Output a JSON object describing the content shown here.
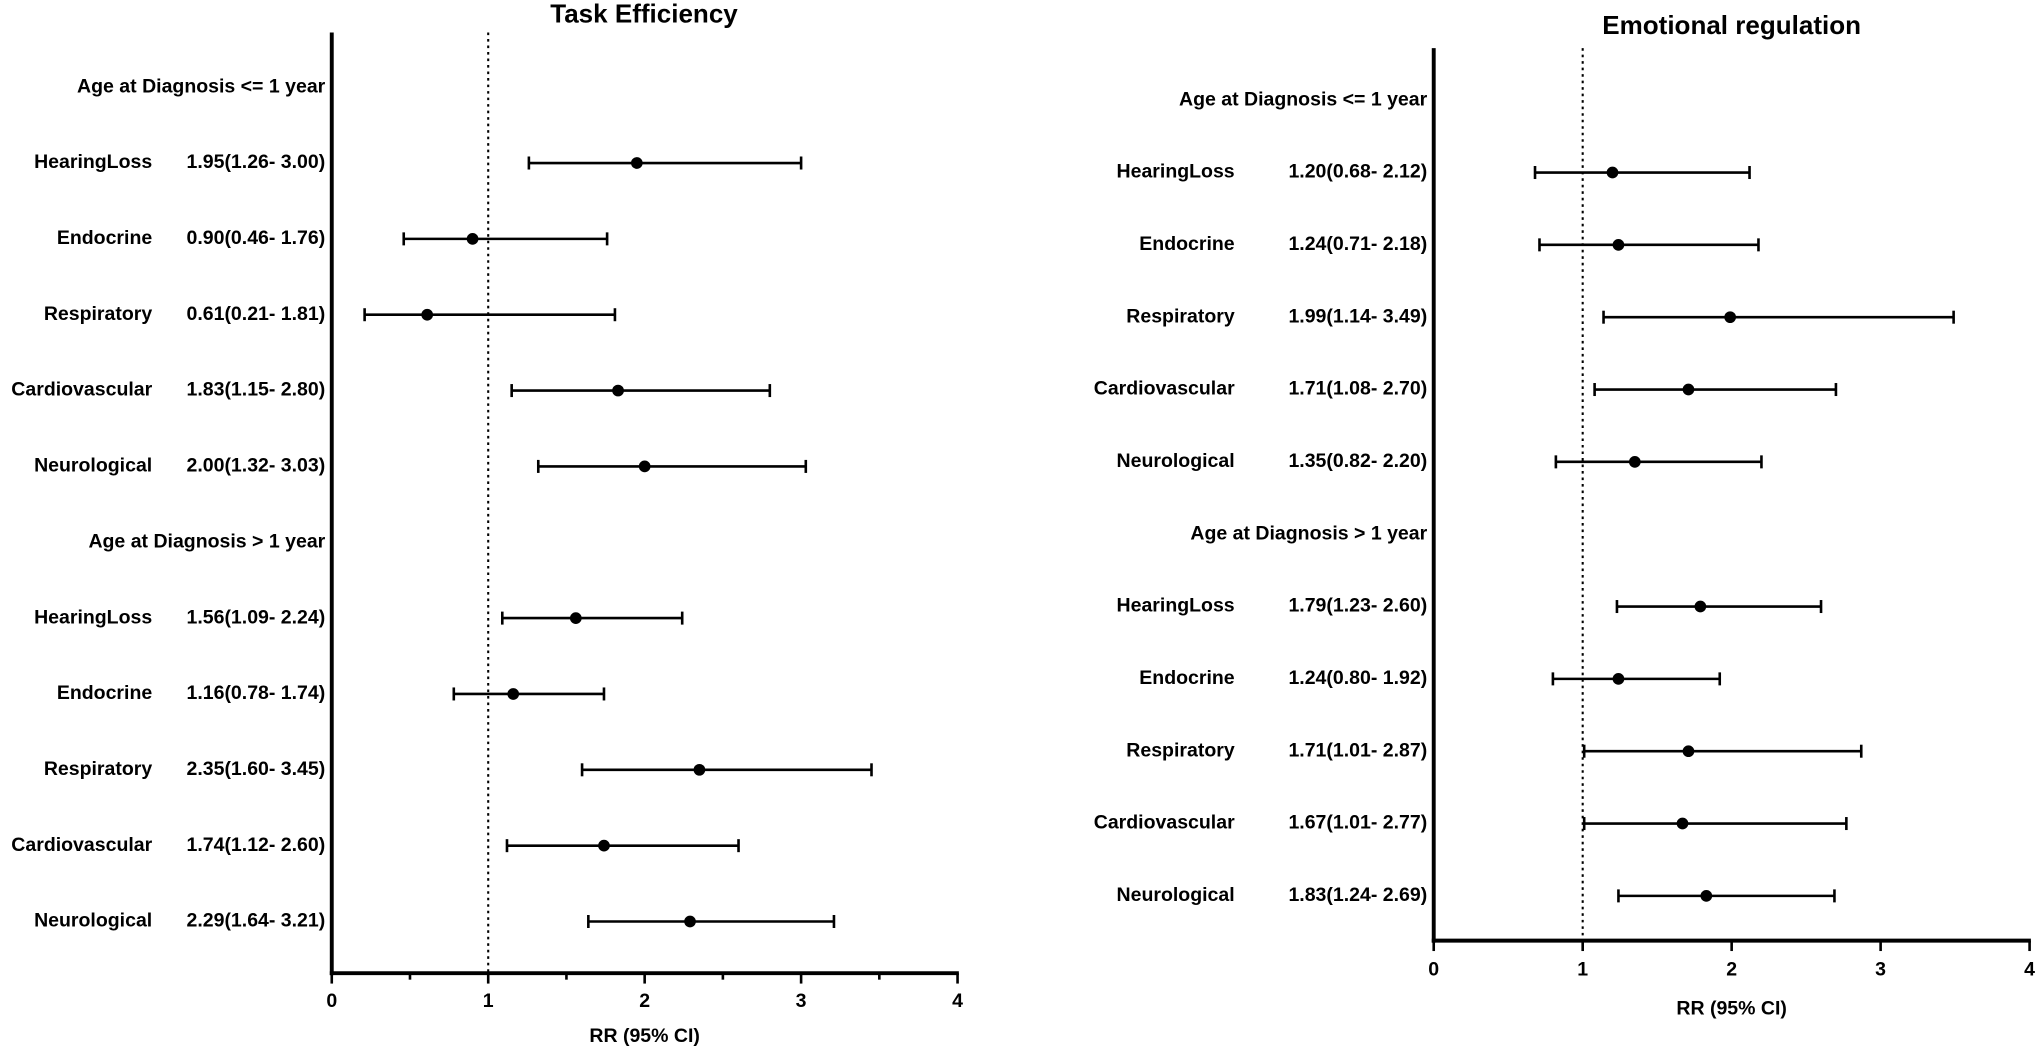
{
  "chart_data": [
    {
      "type": "forest",
      "title": "Task Efficiency",
      "xlabel": "RR (95% CI)",
      "xlim": [
        0,
        4
      ],
      "xticks": [
        0,
        1,
        2,
        3,
        4
      ],
      "minor_xticks": [
        0.5,
        1.5,
        2.5,
        3.5
      ],
      "reference": 1,
      "groups": [
        {
          "name": "Age at Diagnosis <= 1 year",
          "categories": [
            "HearingLoss",
            "Endocrine",
            "Respiratory",
            "Cardiovascular",
            "Neurological"
          ],
          "values": [
            1.95,
            0.9,
            0.61,
            1.83,
            2.0
          ],
          "lower": [
            1.26,
            0.46,
            0.21,
            1.15,
            1.32
          ],
          "upper": [
            3.0,
            1.76,
            1.81,
            2.8,
            3.03
          ],
          "value_labels": [
            "1.95(1.26- 3.00)",
            "0.90(0.46- 1.76)",
            "0.61(0.21- 1.81)",
            "1.83(1.15- 2.80)",
            "2.00(1.32- 3.03)"
          ]
        },
        {
          "name": "Age at Diagnosis > 1 year",
          "categories": [
            "HearingLoss",
            "Endocrine",
            "Respiratory",
            "Cardiovascular",
            "Neurological"
          ],
          "values": [
            1.56,
            1.16,
            2.35,
            1.74,
            2.29
          ],
          "lower": [
            1.09,
            0.78,
            1.6,
            1.12,
            1.64
          ],
          "upper": [
            2.24,
            1.74,
            3.45,
            2.6,
            3.21
          ],
          "value_labels": [
            "1.56(1.09- 2.24)",
            "1.16(0.78- 1.74)",
            "2.35(1.60- 3.45)",
            "1.74(1.12- 2.60)",
            "2.29(1.64- 3.21)"
          ]
        }
      ]
    },
    {
      "type": "forest",
      "title": "Emotional regulation",
      "xlabel": "RR (95% CI)",
      "xlim": [
        0,
        4
      ],
      "xticks": [
        0,
        1,
        2,
        3,
        4
      ],
      "reference": 1,
      "groups": [
        {
          "name": "Age at Diagnosis <= 1 year",
          "categories": [
            "HearingLoss",
            "Endocrine",
            "Respiratory",
            "Cardiovascular",
            "Neurological"
          ],
          "values": [
            1.2,
            1.24,
            1.99,
            1.71,
            1.35
          ],
          "lower": [
            0.68,
            0.71,
            1.14,
            1.08,
            0.82
          ],
          "upper": [
            2.12,
            2.18,
            3.49,
            2.7,
            2.2
          ],
          "value_labels": [
            "1.20(0.68- 2.12)",
            "1.24(0.71- 2.18)",
            "1.99(1.14- 3.49)",
            "1.71(1.08- 2.70)",
            "1.35(0.82- 2.20)"
          ]
        },
        {
          "name": "Age at Diagnosis > 1 year",
          "categories": [
            "HearingLoss",
            "Endocrine",
            "Respiratory",
            "Cardiovascular",
            "Neurological"
          ],
          "values": [
            1.79,
            1.24,
            1.71,
            1.67,
            1.83
          ],
          "lower": [
            1.23,
            0.8,
            1.01,
            1.01,
            1.24
          ],
          "upper": [
            2.6,
            1.92,
            2.87,
            2.77,
            2.69
          ],
          "value_labels": [
            "1.79(1.23- 2.60)",
            "1.24(0.80- 1.92)",
            "1.71(1.01- 2.87)",
            "1.67(1.01- 2.77)",
            "1.83(1.24- 2.69)"
          ]
        }
      ]
    }
  ]
}
